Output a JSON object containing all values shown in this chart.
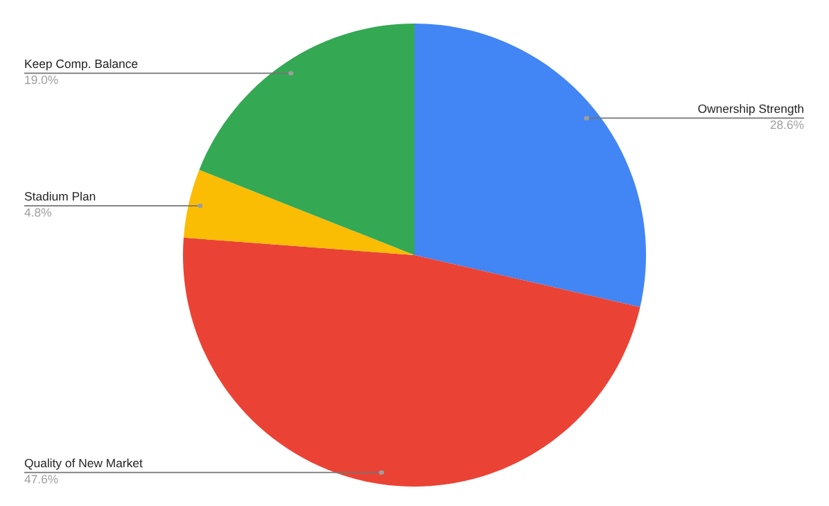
{
  "chart_data": {
    "type": "pie",
    "categories": [
      "Ownership Strength",
      "Quality of New Market",
      "Stadium Plan",
      "Keep Comp. Balance"
    ],
    "values": [
      28.6,
      47.6,
      4.8,
      19.0
    ],
    "colors": [
      "#4285f4",
      "#ea4335",
      "#fbbc04",
      "#34a853"
    ],
    "value_labels": [
      "28.6%",
      "47.6%",
      "4.8%",
      "19.0%"
    ],
    "legend": false
  }
}
